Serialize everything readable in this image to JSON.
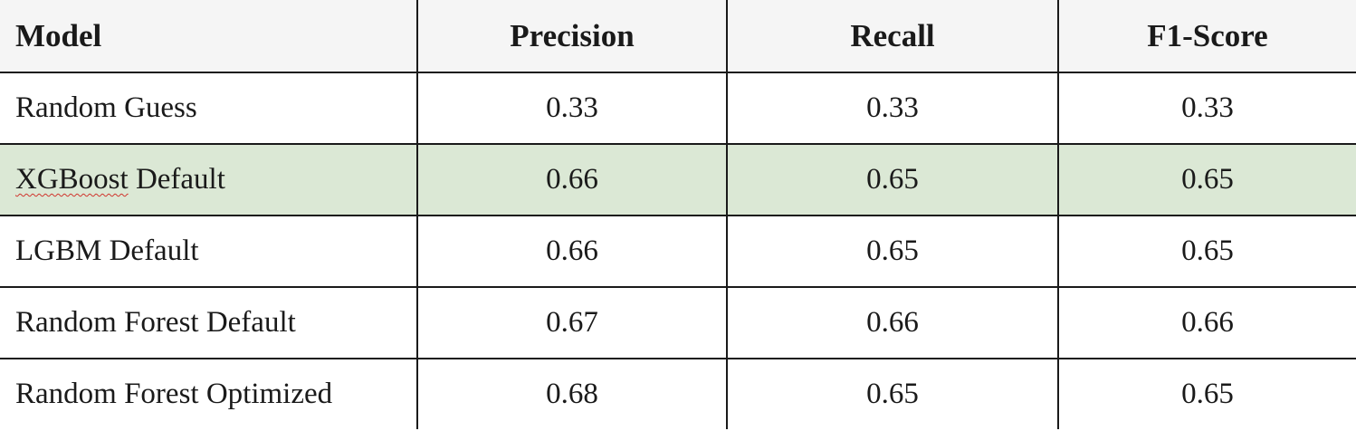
{
  "table": {
    "headers": [
      "Model",
      "Precision",
      "Recall",
      "F1-Score"
    ],
    "rows": [
      {
        "model": "Random Guess",
        "precision": "0.33",
        "recall": "0.33",
        "f1": "0.33"
      },
      {
        "model_parts": [
          "XGBoost",
          " Default"
        ],
        "model": "XGBoost Default",
        "precision": "0.66",
        "recall": "0.65",
        "f1": "0.65",
        "highlight_color": "#dbe8d5"
      },
      {
        "model": "LGBM Default",
        "precision": "0.66",
        "recall": "0.65",
        "f1": "0.65"
      },
      {
        "model": "Random Forest Default",
        "precision": "0.67",
        "recall": "0.66",
        "f1": "0.66"
      },
      {
        "model": "Random Forest Optimized",
        "precision": "0.68",
        "recall": "0.65",
        "f1": "0.65"
      }
    ]
  }
}
